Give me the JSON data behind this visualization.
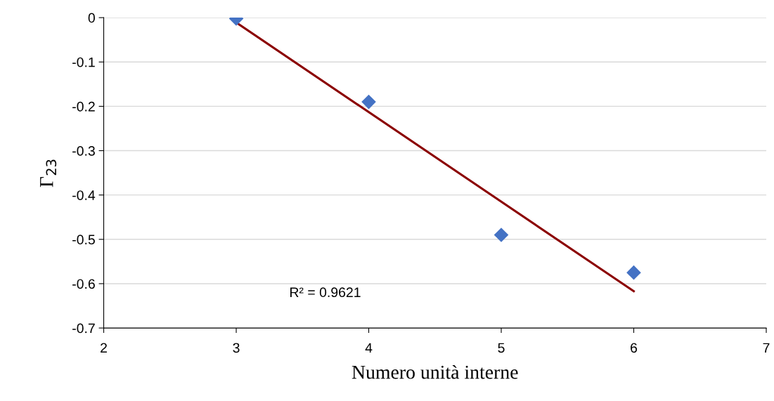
{
  "chart_data": {
    "type": "scatter",
    "xlabel": "Numero unità interne",
    "ylabel": "Γ$_{23}$",
    "x": [
      3,
      4,
      5,
      6
    ],
    "series": [
      {
        "color": "#4472c4",
        "marker": "diamond",
        "values": [
          -0.002,
          -0.19,
          -0.49,
          -0.575
        ]
      },
      {
        "type": "line",
        "color": "#8b0000",
        "marker": "none",
        "line_style": "solid",
        "x": [
          3,
          6
        ],
        "values": [
          -0.011,
          -0.617
        ]
      }
    ],
    "xlim": [
      2,
      7
    ],
    "xticks": [
      2,
      3,
      4,
      5,
      6,
      7
    ],
    "ylim": [
      -0.7,
      0
    ],
    "yticks": [
      0,
      -0.1,
      -0.2,
      -0.3,
      -0.4,
      -0.5,
      -0.6,
      -0.7
    ],
    "grid": "y",
    "legend": false,
    "annotations": [
      "R² = 0.9621"
    ]
  }
}
